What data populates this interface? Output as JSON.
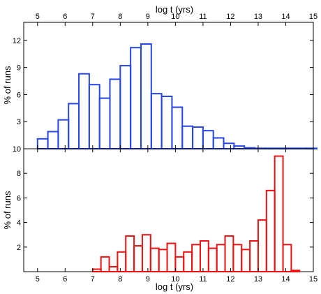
{
  "chart_data": [
    {
      "type": "bar",
      "panel": "top",
      "xlabel": "log t (yrs)",
      "ylabel": "% of runs",
      "xaxis_position": "top",
      "xlim": [
        4.5,
        15
      ],
      "ylim": [
        0,
        14
      ],
      "xticks": [
        "5",
        "6",
        "7",
        "8",
        "9",
        "10",
        "11",
        "12",
        "13",
        "14",
        "15"
      ],
      "yticks": [
        {
          "value": 0,
          "label": "10"
        },
        {
          "value": 3,
          "label": "3"
        },
        {
          "value": 6,
          "label": "6"
        },
        {
          "value": 9,
          "label": "9"
        },
        {
          "value": 12,
          "label": "12"
        }
      ],
      "color": "#2646e8",
      "bin_width": 0.375,
      "bin_start": 5.0,
      "values": [
        1.1,
        1.9,
        3.2,
        5.0,
        8.3,
        7.1,
        5.6,
        7.7,
        9.2,
        11.2,
        11.6,
        6.1,
        5.8,
        4.6,
        2.5,
        2.4,
        2.0,
        1.2,
        0.6,
        0.3,
        0.1,
        0.05,
        0.05,
        0.05,
        0.05,
        0.05,
        0.05,
        0.0
      ]
    },
    {
      "type": "bar",
      "panel": "bottom",
      "xlabel": "log t (yrs)",
      "ylabel": "% of runs",
      "xaxis_position": "bottom",
      "xlim": [
        4.5,
        15
      ],
      "ylim": [
        0,
        10
      ],
      "xticks": [
        "5",
        "6",
        "7",
        "8",
        "9",
        "10",
        "11",
        "12",
        "13",
        "14",
        "15"
      ],
      "yticks": [
        {
          "value": 2,
          "label": "2"
        },
        {
          "value": 4,
          "label": "4"
        },
        {
          "value": 6,
          "label": "6"
        },
        {
          "value": 8,
          "label": "8"
        }
      ],
      "color": "#ee1111",
      "bin_width": 0.3,
      "bin_start": 7.0,
      "values": [
        0.2,
        1.2,
        0.4,
        1.6,
        2.9,
        2.1,
        3.0,
        1.9,
        1.8,
        2.3,
        1.2,
        1.6,
        2.2,
        2.5,
        1.9,
        2.2,
        2.9,
        2.2,
        1.8,
        2.5,
        4.2,
        6.6,
        9.4,
        2.2,
        0.1
      ]
    }
  ]
}
